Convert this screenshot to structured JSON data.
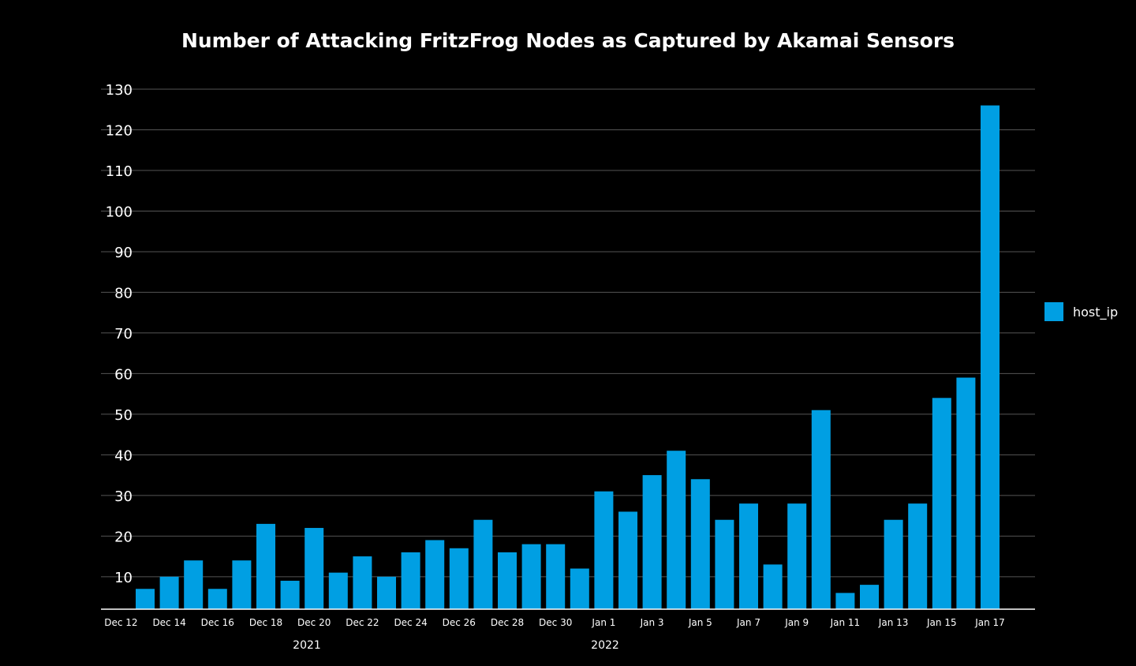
{
  "chart_data": {
    "type": "bar",
    "title": "Number of Attacking FritzFrog Nodes as Captured by Akamai Sensors",
    "xlabel": "",
    "ylabel": "",
    "ylim": [
      2,
      130
    ],
    "yticks": [
      10,
      20,
      30,
      40,
      50,
      60,
      70,
      80,
      90,
      100,
      110,
      120,
      130
    ],
    "grid": true,
    "legend_position": "right",
    "bar_color": "#009FE3",
    "categories": [
      "Dec 13",
      "Dec 14",
      "Dec 15",
      "Dec 16",
      "Dec 17",
      "Dec 18",
      "Dec 19",
      "Dec 20",
      "Dec 21",
      "Dec 22",
      "Dec 23",
      "Dec 24",
      "Dec 25",
      "Dec 26",
      "Dec 27",
      "Dec 28",
      "Dec 29",
      "Dec 30",
      "Dec 31",
      "Jan 1",
      "Jan 2",
      "Jan 3",
      "Jan 4",
      "Jan 5",
      "Jan 6",
      "Jan 7",
      "Jan 8",
      "Jan 9",
      "Jan 10",
      "Jan 11",
      "Jan 12",
      "Jan 13",
      "Jan 14",
      "Jan 15",
      "Jan 16",
      "Jan 17"
    ],
    "x_tick_labels": [
      "Dec 12",
      "Dec 14",
      "Dec 16",
      "Dec 18",
      "Dec 20",
      "Dec 22",
      "Dec 24",
      "Dec 26",
      "Dec 28",
      "Dec 30",
      "Jan 1",
      "Jan 3",
      "Jan 5",
      "Jan 7",
      "Jan 9",
      "Jan 11",
      "Jan 13",
      "Jan 15",
      "Jan 17"
    ],
    "year_labels": [
      "2021",
      "2022"
    ],
    "series": [
      {
        "name": "host_ip",
        "values": [
          7,
          10,
          14,
          7,
          14,
          23,
          9,
          22,
          11,
          15,
          10,
          16,
          19,
          17,
          24,
          16,
          18,
          18,
          12,
          31,
          26,
          35,
          41,
          34,
          24,
          28,
          13,
          28,
          51,
          6,
          8,
          24,
          28,
          54,
          59,
          126
        ]
      }
    ]
  }
}
